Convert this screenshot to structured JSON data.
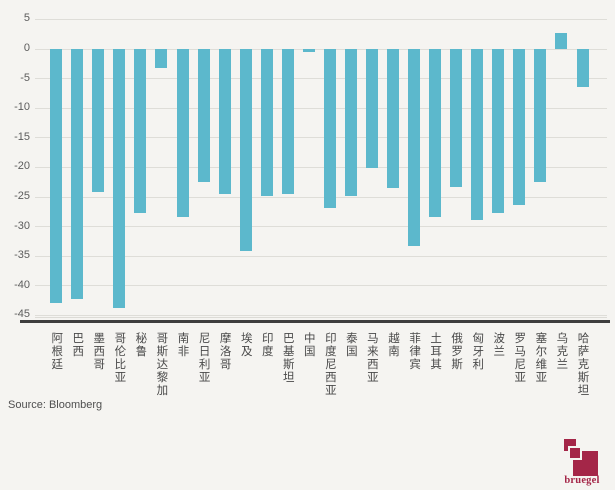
{
  "chart_data": {
    "type": "bar",
    "title": "",
    "categories": [
      "阿根廷",
      "巴西",
      "墨西哥",
      "哥伦比亚",
      "秘鲁",
      "哥斯达黎加",
      "南非",
      "尼日利亚",
      "摩洛哥",
      "埃及",
      "印度",
      "巴基斯坦",
      "中国",
      "印度尼西亚",
      "泰国",
      "马来西亚",
      "越南",
      "菲律宾",
      "土耳其",
      "俄罗斯",
      "匈牙利",
      "波兰",
      "罗马尼亚",
      "塞尔维亚",
      "乌克兰",
      "哈萨克斯坦"
    ],
    "values": [
      -43.0,
      -42.3,
      -24.2,
      -43.8,
      -27.7,
      -3.3,
      -28.4,
      -22.5,
      -24.6,
      -34.2,
      -24.9,
      -24.5,
      -0.5,
      -26.9,
      -24.9,
      -20.1,
      -23.6,
      -33.4,
      -28.4,
      -23.4,
      -28.9,
      -27.7,
      -26.4,
      -22.6,
      2.7,
      -6.5
    ],
    "xlabel": "",
    "ylabel": "",
    "ylim": [
      -45,
      5
    ],
    "ytick_interval": 5,
    "ytick_labels": [
      "5",
      "0",
      "-5",
      "-10",
      "-15",
      "-20",
      "-25",
      "-30",
      "-35",
      "-40",
      "-45"
    ],
    "grid": "horizontal-only",
    "legend_position": "none",
    "bar_color": "#5cb8cc",
    "background_color": "#f5f4f1",
    "gridline_color": "#deddd8",
    "axis_line_color": "#3e3e3e"
  },
  "source": {
    "label": "Source: Bloomberg"
  },
  "logo": {
    "text": "bruegel",
    "color": "#a42648"
  }
}
